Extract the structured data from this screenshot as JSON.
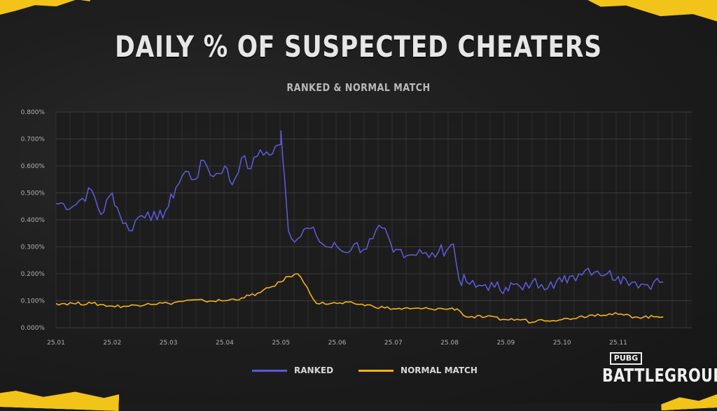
{
  "title": "DAILY % OF SUSPECTED CHEATERS",
  "subtitle": "RANKED & NORMAL MATCH",
  "logo": {
    "small": "PUBG",
    "big": "BATTLEGROUNDS"
  },
  "colors": {
    "ranked": "#5a5ad6",
    "normal": "#f5b317",
    "grid": "#3a3a3a",
    "plot_bg": "#1c1c1c",
    "accent": "#f2c318"
  },
  "chart_data": {
    "type": "line",
    "title": "DAILY % OF SUSPECTED CHEATERS",
    "subtitle": "RANKED & NORMAL MATCH",
    "xlabel": "",
    "ylabel": "",
    "x_ticks": [
      "25.01",
      "25.02",
      "25.03",
      "25.04",
      "25.05",
      "25.06",
      "25.07",
      "25.08",
      "25.09",
      "25.10",
      "25.11"
    ],
    "y_ticks": [
      "0.000%",
      "0.100%",
      "0.200%",
      "0.300%",
      "0.400%",
      "0.500%",
      "0.600%",
      "0.700%",
      "0.800%"
    ],
    "ylim": [
      0,
      0.8
    ],
    "grid": true,
    "legend": "bottom-center",
    "series": [
      {
        "name": "RANKED",
        "points": [
          [
            "25.01",
            0.46
          ],
          [
            "25.01.05",
            0.46
          ],
          [
            "25.01.10",
            0.45
          ],
          [
            "25.01.15",
            0.48
          ],
          [
            "25.01.20",
            0.51
          ],
          [
            "25.01.25",
            0.42
          ],
          [
            "25.02",
            0.5
          ],
          [
            "25.02.05",
            0.42
          ],
          [
            "25.02.10",
            0.36
          ],
          [
            "25.02.15",
            0.41
          ],
          [
            "25.02.20",
            0.43
          ],
          [
            "25.02.25",
            0.4
          ],
          [
            "25.03",
            0.45
          ],
          [
            "25.03.05",
            0.52
          ],
          [
            "25.03.10",
            0.58
          ],
          [
            "25.03.15",
            0.55
          ],
          [
            "25.03.20",
            0.62
          ],
          [
            "25.03.25",
            0.56
          ],
          [
            "25.04",
            0.6
          ],
          [
            "25.04.05",
            0.53
          ],
          [
            "25.04.10",
            0.63
          ],
          [
            "25.04.15",
            0.59
          ],
          [
            "25.04.20",
            0.66
          ],
          [
            "25.04.25",
            0.64
          ],
          [
            "25.05",
            0.68
          ],
          [
            "25.05.01",
            0.73
          ],
          [
            "25.05.03",
            0.55
          ],
          [
            "25.05.05",
            0.36
          ],
          [
            "25.05.10",
            0.33
          ],
          [
            "25.05.15",
            0.37
          ],
          [
            "25.05.20",
            0.34
          ],
          [
            "25.05.25",
            0.3
          ],
          [
            "25.06",
            0.3
          ],
          [
            "25.06.05",
            0.28
          ],
          [
            "25.06.10",
            0.31
          ],
          [
            "25.06.15",
            0.29
          ],
          [
            "25.06.20",
            0.33
          ],
          [
            "25.06.25",
            0.37
          ],
          [
            "25.07",
            0.28
          ],
          [
            "25.07.05",
            0.29
          ],
          [
            "25.07.10",
            0.27
          ],
          [
            "25.07.15",
            0.29
          ],
          [
            "25.07.20",
            0.26
          ],
          [
            "25.07.25",
            0.28
          ],
          [
            "25.08",
            0.3
          ],
          [
            "25.08.03",
            0.31
          ],
          [
            "25.08.06",
            0.18
          ],
          [
            "25.08.10",
            0.17
          ],
          [
            "25.08.15",
            0.15
          ],
          [
            "25.08.20",
            0.16
          ],
          [
            "25.08.25",
            0.15
          ],
          [
            "25.09",
            0.15
          ],
          [
            "25.09.05",
            0.16
          ],
          [
            "25.09.10",
            0.14
          ],
          [
            "25.09.15",
            0.17
          ],
          [
            "25.09.20",
            0.16
          ],
          [
            "25.09.25",
            0.17
          ],
          [
            "25.10",
            0.17
          ],
          [
            "25.10.05",
            0.19
          ],
          [
            "25.10.10",
            0.2
          ],
          [
            "25.10.15",
            0.22
          ],
          [
            "25.10.20",
            0.21
          ],
          [
            "25.10.25",
            0.2
          ],
          [
            "25.11",
            0.19
          ],
          [
            "25.11.05",
            0.18
          ],
          [
            "25.11.10",
            0.17
          ],
          [
            "25.11.15",
            0.16
          ],
          [
            "25.11.20",
            0.17
          ],
          [
            "25.11.25",
            0.17
          ]
        ]
      },
      {
        "name": "NORMAL MATCH",
        "points": [
          [
            "25.01",
            0.09
          ],
          [
            "25.01.10",
            0.09
          ],
          [
            "25.01.20",
            0.09
          ],
          [
            "25.02",
            0.08
          ],
          [
            "25.02.10",
            0.08
          ],
          [
            "25.02.20",
            0.09
          ],
          [
            "25.03",
            0.09
          ],
          [
            "25.03.10",
            0.1
          ],
          [
            "25.03.20",
            0.1
          ],
          [
            "25.04",
            0.1
          ],
          [
            "25.04.10",
            0.11
          ],
          [
            "25.04.20",
            0.13
          ],
          [
            "25.05",
            0.17
          ],
          [
            "25.05.05",
            0.19
          ],
          [
            "25.05.10",
            0.2
          ],
          [
            "25.05.15",
            0.15
          ],
          [
            "25.05.20",
            0.09
          ],
          [
            "25.06",
            0.09
          ],
          [
            "25.06.10",
            0.09
          ],
          [
            "25.06.20",
            0.08
          ],
          [
            "25.07",
            0.07
          ],
          [
            "25.07.10",
            0.07
          ],
          [
            "25.07.20",
            0.07
          ],
          [
            "25.08",
            0.07
          ],
          [
            "25.08.05",
            0.07
          ],
          [
            "25.08.10",
            0.04
          ],
          [
            "25.08.20",
            0.04
          ],
          [
            "25.09",
            0.03
          ],
          [
            "25.09.10",
            0.03
          ],
          [
            "25.09.15",
            0.02
          ],
          [
            "25.09.20",
            0.03
          ],
          [
            "25.10",
            0.03
          ],
          [
            "25.10.10",
            0.04
          ],
          [
            "25.10.20",
            0.05
          ],
          [
            "25.11",
            0.05
          ],
          [
            "25.11.10",
            0.04
          ],
          [
            "25.11.20",
            0.04
          ],
          [
            "25.11.25",
            0.04
          ]
        ]
      }
    ]
  }
}
